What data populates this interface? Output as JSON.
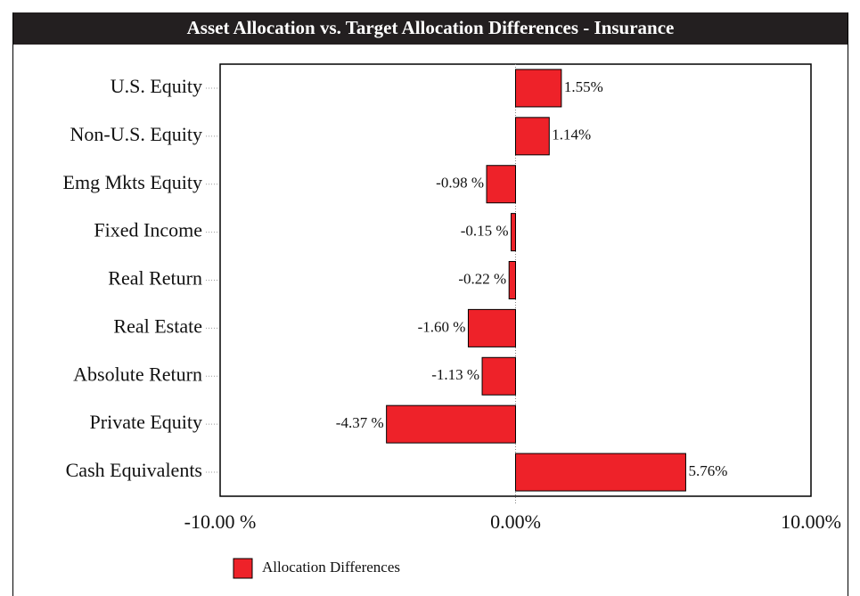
{
  "chart_data": {
    "type": "barh",
    "title": "Asset Allocation vs. Target Allocation Differences - Insurance",
    "categories": [
      "U.S. Equity",
      "Non-U.S. Equity",
      "Emg Mkts Equity",
      "Fixed Income",
      "Real Return",
      "Real Estate",
      "Absolute Return",
      "Private Equity",
      "Cash Equivalents"
    ],
    "series": [
      {
        "name": "Allocation Differences",
        "color": "#ee2229",
        "values": [
          1.55,
          1.14,
          -0.98,
          -0.15,
          -0.22,
          -1.6,
          -1.13,
          -4.37,
          5.76
        ],
        "value_labels": [
          "1.55%",
          "1.14%",
          "-0.98 %",
          "-0.15 %",
          "-0.22 %",
          "-1.60 %",
          "-1.13 %",
          "-4.37 %",
          "5.76%"
        ]
      }
    ],
    "xlim": [
      -10,
      10
    ],
    "xticks": [
      {
        "value": -10,
        "label": "-10.00 %"
      },
      {
        "value": 0,
        "label": "0.00%"
      },
      {
        "value": 10,
        "label": "10.00%"
      }
    ]
  }
}
